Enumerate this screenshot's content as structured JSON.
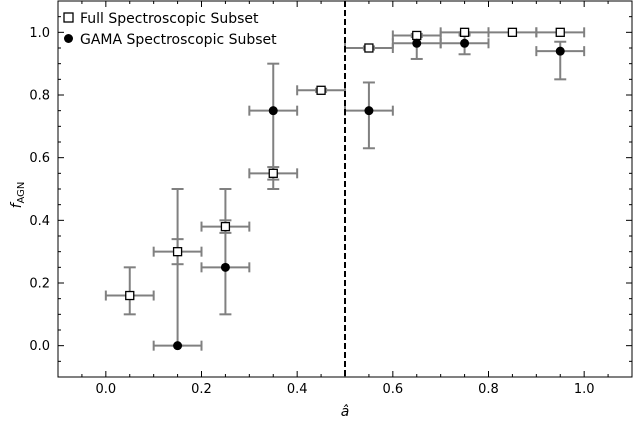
{
  "chart_data": {
    "type": "scatter",
    "xlabel": "â",
    "ylabel": "f",
    "ylabel_sub": "AGN",
    "xlim": [
      -0.1,
      1.1
    ],
    "ylim": [
      -0.1,
      1.1
    ],
    "xticks": [
      "0.0",
      "0.2",
      "0.4",
      "0.6",
      "0.8",
      "1.0"
    ],
    "yticks": [
      "0.0",
      "0.2",
      "0.4",
      "0.6",
      "0.8",
      "1.0"
    ],
    "grid": false,
    "legend_position": "top-left",
    "vline": {
      "x": 0.5,
      "style": "dashed",
      "color": "#000000"
    },
    "series": [
      {
        "name": "Full Spectroscopic Subset",
        "marker": "open-square",
        "points": [
          {
            "x": 0.05,
            "y": 0.16,
            "xerr": 0.05,
            "ylo": 0.1,
            "yhi": 0.25
          },
          {
            "x": 0.15,
            "y": 0.3,
            "xerr": 0.05,
            "ylo": 0.26,
            "yhi": 0.34
          },
          {
            "x": 0.25,
            "y": 0.38,
            "xerr": 0.05,
            "ylo": 0.36,
            "yhi": 0.4
          },
          {
            "x": 0.35,
            "y": 0.55,
            "xerr": 0.05,
            "ylo": 0.53,
            "yhi": 0.57
          },
          {
            "x": 0.45,
            "y": 0.815,
            "xerr": 0.05,
            "ylo": 0.81,
            "yhi": 0.82
          },
          {
            "x": 0.55,
            "y": 0.95,
            "xerr": 0.05,
            "ylo": 0.945,
            "yhi": 0.955
          },
          {
            "x": 0.65,
            "y": 0.99,
            "xerr": 0.05,
            "ylo": 0.985,
            "yhi": 0.995
          },
          {
            "x": 0.75,
            "y": 1.0,
            "xerr": 0.05,
            "ylo": 0.995,
            "yhi": 1.0
          },
          {
            "x": 0.85,
            "y": 1.0,
            "xerr": 0.05,
            "ylo": 1.0,
            "yhi": 1.0
          },
          {
            "x": 0.95,
            "y": 1.0,
            "xerr": 0.05,
            "ylo": 1.0,
            "yhi": 1.0
          }
        ]
      },
      {
        "name": "GAMA Spectroscopic Subset",
        "marker": "filled-circle",
        "points": [
          {
            "x": 0.15,
            "y": 0.0,
            "xerr": 0.05,
            "ylo": 0.0,
            "yhi": 0.5
          },
          {
            "x": 0.25,
            "y": 0.25,
            "xerr": 0.05,
            "ylo": 0.1,
            "yhi": 0.5
          },
          {
            "x": 0.35,
            "y": 0.75,
            "xerr": 0.05,
            "ylo": 0.5,
            "yhi": 0.9
          },
          {
            "x": 0.55,
            "y": 0.75,
            "xerr": 0.05,
            "ylo": 0.63,
            "yhi": 0.84
          },
          {
            "x": 0.65,
            "y": 0.965,
            "xerr": 0.05,
            "ylo": 0.915,
            "yhi": 0.99
          },
          {
            "x": 0.75,
            "y": 0.965,
            "xerr": 0.05,
            "ylo": 0.93,
            "yhi": 0.99
          },
          {
            "x": 0.95,
            "y": 0.94,
            "xerr": 0.05,
            "ylo": 0.85,
            "yhi": 0.97
          }
        ]
      }
    ],
    "colors": {
      "errorbar": "#808080",
      "marker_edge": "#000000",
      "circle_fill": "#000000",
      "square_fill": "#ffffff",
      "frame": "#000000"
    }
  }
}
